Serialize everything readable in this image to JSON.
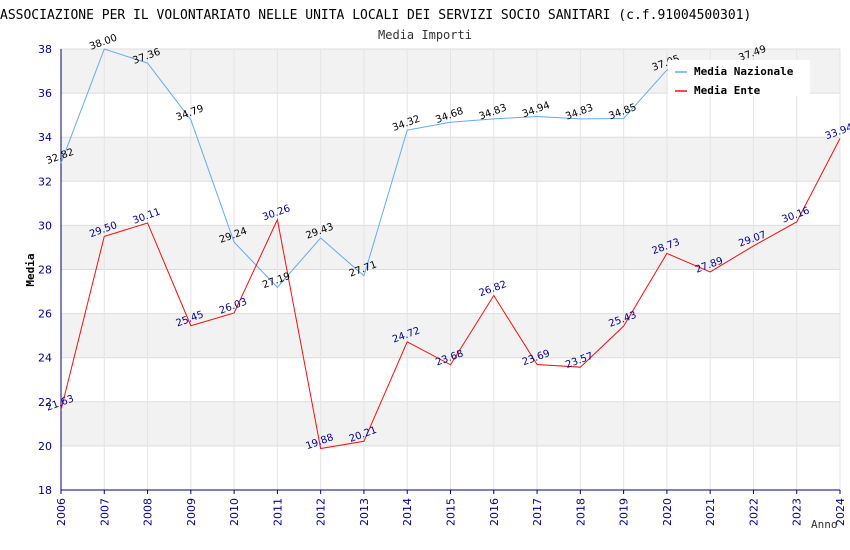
{
  "chart_data": {
    "type": "line",
    "title": "ASSOCIAZIONE PER IL VOLONTARIATO NELLE UNITA LOCALI DEI SERVIZI SOCIO SANITARI (c.f.91004500301)",
    "subtitle": "Media Importi",
    "xlabel": "Anno",
    "ylabel": "Media",
    "ylim": [
      18,
      38
    ],
    "yticks": [
      "18",
      "20",
      "22",
      "24",
      "26",
      "28",
      "30",
      "32",
      "34",
      "36",
      "38"
    ],
    "categories": [
      "2006",
      "2007",
      "2008",
      "2009",
      "2010",
      "2011",
      "2012",
      "2013",
      "2014",
      "2015",
      "2016",
      "2017",
      "2018",
      "2019",
      "2020",
      "2021",
      "2022",
      "2023",
      "2024"
    ],
    "legend_position": "top-right",
    "series": [
      {
        "name": "Media Nazionale",
        "color": "#66aaee",
        "values": [
          32.82,
          38.0,
          37.36,
          34.79,
          29.24,
          27.19,
          29.43,
          27.71,
          34.32,
          34.68,
          34.83,
          34.94,
          34.83,
          34.85,
          37.05,
          null,
          37.49,
          null,
          null
        ],
        "labels": [
          "32.82",
          "38.00",
          "37.36",
          "34.79",
          "29.24",
          "27.19",
          "29.43",
          "27.71",
          "34.32",
          "34.68",
          "34.83",
          "34.94",
          "34.83",
          "34.85",
          "37.05",
          "",
          "37.49",
          "",
          ""
        ]
      },
      {
        "name": "Media Ente",
        "color": "#ee1111",
        "values": [
          21.63,
          29.5,
          30.11,
          25.45,
          26.03,
          30.26,
          19.88,
          20.21,
          24.72,
          23.68,
          26.82,
          23.69,
          23.57,
          25.43,
          28.73,
          27.89,
          29.07,
          30.16,
          33.94
        ],
        "labels": [
          "21.63",
          "29.50",
          "30.11",
          "25.45",
          "26.03",
          "30.26",
          "19.88",
          "20.21",
          "24.72",
          "23.68",
          "26.82",
          "23.69",
          "23.57",
          "25.43",
          "28.73",
          "27.89",
          "29.07",
          "30.16",
          "33.94"
        ]
      }
    ]
  }
}
